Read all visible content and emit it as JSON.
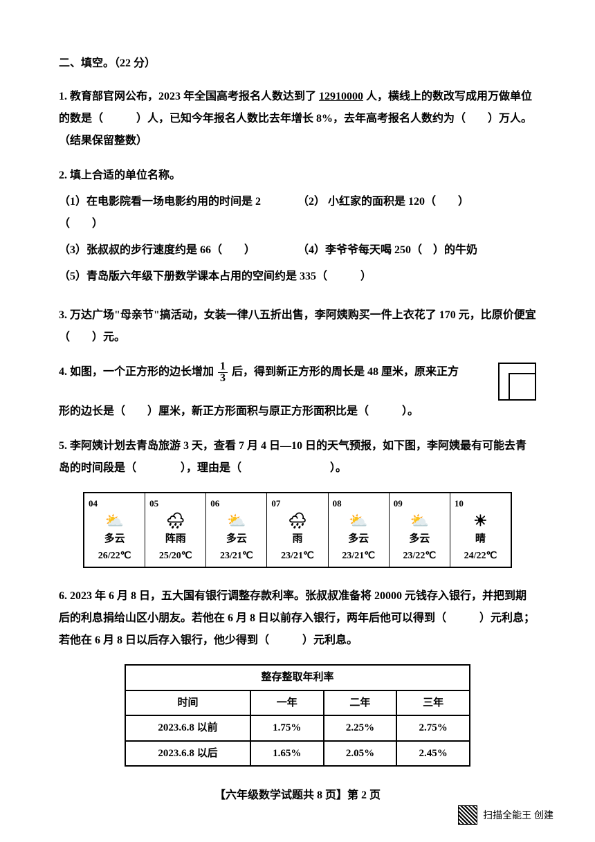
{
  "section_title": "二、填空。（22 分）",
  "q1": {
    "prefix": "1. 教育部官网公布，2023 年全国高考报名人数达到了 ",
    "number": "12910000",
    "mid1": " 人，横线上的数改写成用万做单位的数是（　　　）人，已知今年报名人数比去年增长 8%，去年高考报名人数约为（　　）万人。（结果保留整数）"
  },
  "q2": {
    "title": "2. 填上合适的单位名称。",
    "items": [
      "（1）在电影院看一场电影约用的时间是 2（　　）",
      "（2） 小红家的面积是 120（　　）",
      "（3）张叔叔的步行速度约是 66（　　）",
      "（4）李爷爷每天喝 250（　）的牛奶",
      "（5）青岛版六年级下册数学课本占用的空间约是 335（　　　）"
    ]
  },
  "q3": "3. 万达广场\"母亲节\"搞活动，女装一律八五折出售，李阿姨购买一件上衣花了 170 元，比原价便宜（　　）元。",
  "q4": {
    "line1_pre": "4. 如图，一个正方形的边长增加 ",
    "frac_num": "1",
    "frac_den": "3",
    "line1_post": " 后，得到新正方形的周长是 48 厘米，原来正方",
    "line2": "形的边长是（　　）厘米，新正方形面积与原正方形面积比是（　　　）。"
  },
  "q5": {
    "text": "5. 李阿姨计划去青岛旅游 3 天，查看 7 月 4 日—10 日的天气预报，如下图，李阿姨最有可能去青岛的时间段是（　　　　），理由是（　　　　　　　　）。"
  },
  "weather": [
    {
      "date": "04",
      "icon": "⛅",
      "desc": "多云",
      "temp": "26/22℃"
    },
    {
      "date": "05",
      "icon": "🌧",
      "desc": "阵雨",
      "temp": "25/20℃"
    },
    {
      "date": "06",
      "icon": "⛅",
      "desc": "多云",
      "temp": "23/21℃"
    },
    {
      "date": "07",
      "icon": "🌧",
      "desc": "雨",
      "temp": "23/21℃"
    },
    {
      "date": "08",
      "icon": "⛅",
      "desc": "多云",
      "temp": "23/21℃"
    },
    {
      "date": "09",
      "icon": "⛅",
      "desc": "多云",
      "temp": "23/22℃"
    },
    {
      "date": "10",
      "icon": "☀",
      "desc": "晴",
      "temp": "24/22℃"
    }
  ],
  "q6": "6. 2023 年 6 月 8 日，五大国有银行调整存款利率。张叔叔准备将 20000 元钱存入银行，并把到期后的利息捐给山区小朋友。若他在 6 月 8 日以前存入银行，两年后他可以得到（　　　）元利息；若他在 6 月 8 日以后存入银行，他少得到（　　　）元利息。",
  "rate_table": {
    "title": "整存整取年利率",
    "headers": [
      "时间",
      "一年",
      "二年",
      "三年"
    ],
    "rows": [
      [
        "2023.6.8 以前",
        "1.75%",
        "2.25%",
        "2.75%"
      ],
      [
        "2023.6.8 以后",
        "1.65%",
        "2.05%",
        "2.45%"
      ]
    ]
  },
  "footer": "【六年级数学试题共 8 页】第 2 页",
  "watermark": "扫描全能王  创建"
}
